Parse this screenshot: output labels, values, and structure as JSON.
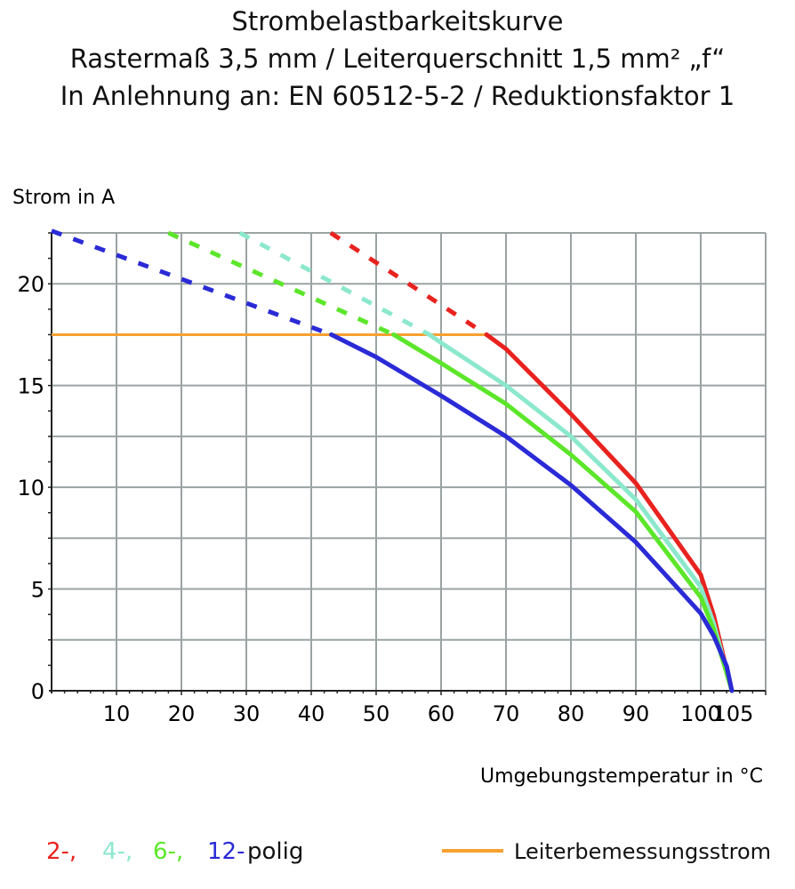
{
  "chart_data": {
    "type": "line",
    "title": "Strombelastbarkeitskurve",
    "subtitle_lines": [
      "Rastermaß 3,5 mm / Leiterquerschnitt 1,5 mm² „f“",
      "In Anlehnung an: EN 60512-5-2 / Reduktionsfaktor 1"
    ],
    "ylabel": "Strom in A",
    "xlabel": "Umgebungstemperatur in °C",
    "xlim": [
      0,
      110
    ],
    "ylim": [
      0,
      22.5
    ],
    "x_ticks": [
      10,
      20,
      30,
      40,
      50,
      60,
      70,
      80,
      90,
      100,
      105
    ],
    "x_tick_labels": [
      "10",
      "20",
      "30",
      "40",
      "50",
      "60",
      "70",
      "80",
      "90",
      "100",
      "105"
    ],
    "y_ticks": [
      0,
      5,
      10,
      15,
      20
    ],
    "y_tick_labels": [
      "0",
      "5",
      "10",
      "15",
      "20"
    ],
    "x_grid": [
      10,
      20,
      30,
      40,
      50,
      60,
      70,
      80,
      90,
      100,
      110
    ],
    "y_grid": [
      2.5,
      5,
      7.5,
      10,
      12.5,
      15,
      17.5,
      20,
      22.5
    ],
    "grid": true,
    "rated_current": {
      "name": "Leiterbemessungsstrom",
      "value": 17.5,
      "x_range": [
        0,
        67
      ],
      "color": "#f7a030"
    },
    "series": [
      {
        "name": "2-,",
        "color": "#e8231f",
        "dashed": [
          [
            43,
            22.5
          ],
          [
            67,
            17.5
          ]
        ],
        "solid": [
          [
            67,
            17.5
          ],
          [
            70,
            16.8
          ],
          [
            80,
            13.6
          ],
          [
            90,
            10.2
          ],
          [
            100,
            5.7
          ],
          [
            102,
            3.7
          ],
          [
            104,
            1.0
          ],
          [
            104.8,
            0
          ]
        ]
      },
      {
        "name": "4-,",
        "color": "#8ce8cc",
        "dashed": [
          [
            29,
            22.5
          ],
          [
            58.2,
            17.5
          ]
        ],
        "solid": [
          [
            58.2,
            17.5
          ],
          [
            60,
            17.1
          ],
          [
            70,
            15.0
          ],
          [
            80,
            12.5
          ],
          [
            90,
            9.4
          ],
          [
            100,
            5.1
          ],
          [
            102,
            3.3
          ],
          [
            104.8,
            0
          ]
        ]
      },
      {
        "name": "6-,",
        "color": "#5ce62a",
        "dashed": [
          [
            18,
            22.5
          ],
          [
            52.7,
            17.5
          ]
        ],
        "solid": [
          [
            52.7,
            17.5
          ],
          [
            60,
            16.1
          ],
          [
            70,
            14.1
          ],
          [
            80,
            11.6
          ],
          [
            90,
            8.8
          ],
          [
            100,
            4.6
          ],
          [
            102,
            3.0
          ],
          [
            104.8,
            0
          ]
        ]
      },
      {
        "name": "12-",
        "color": "#2a2ad6",
        "dashed": [
          [
            0,
            22.6
          ],
          [
            43.1,
            17.5
          ]
        ],
        "solid": [
          [
            43.1,
            17.5
          ],
          [
            50,
            16.4
          ],
          [
            60,
            14.5
          ],
          [
            70,
            12.5
          ],
          [
            80,
            10.1
          ],
          [
            90,
            7.3
          ],
          [
            100,
            3.8
          ],
          [
            102,
            2.7
          ],
          [
            104,
            1.2
          ],
          [
            104.8,
            0
          ]
        ]
      }
    ],
    "legend_suffix": "polig",
    "legend_placement": "bottom"
  }
}
